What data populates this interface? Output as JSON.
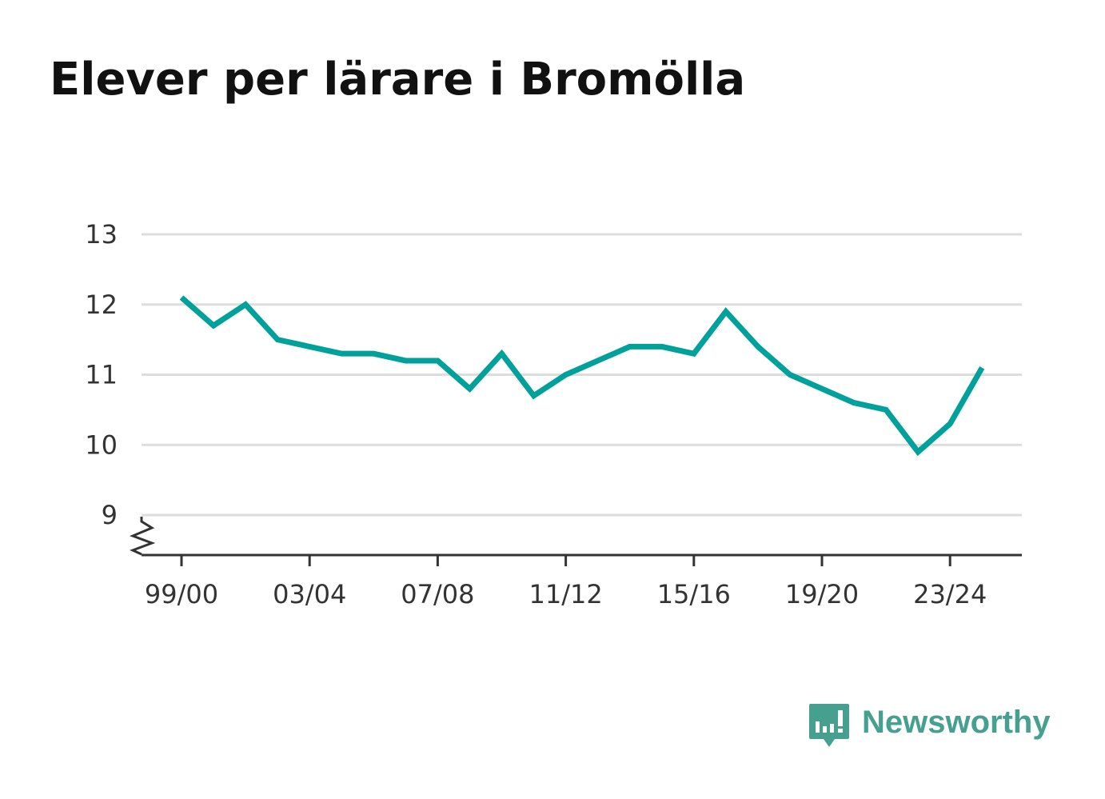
{
  "title": "Elever per lärare i Bromölla",
  "brand": {
    "name": "Newsworthy",
    "icon": "newsworthy-logo-icon",
    "color": "#45a090"
  },
  "chart_data": {
    "type": "line",
    "title": "Elever per lärare i Bromölla",
    "xlabel": "",
    "ylabel": "",
    "categories": [
      "99/00",
      "00/01",
      "01/02",
      "02/03",
      "03/04",
      "04/05",
      "05/06",
      "06/07",
      "07/08",
      "08/09",
      "09/10",
      "10/11",
      "11/12",
      "12/13",
      "13/14",
      "14/15",
      "15/16",
      "16/17",
      "17/18",
      "18/19",
      "19/20",
      "20/21",
      "21/22",
      "22/23",
      "23/24",
      "24/25"
    ],
    "x_tick_labels": [
      "99/00",
      "03/04",
      "07/08",
      "11/12",
      "15/16",
      "19/20",
      "23/24"
    ],
    "series": [
      {
        "values": [
          12.1,
          11.7,
          12.0,
          11.5,
          11.4,
          11.3,
          11.3,
          11.2,
          11.2,
          10.8,
          11.3,
          10.7,
          11.0,
          11.2,
          11.4,
          11.4,
          11.3,
          11.9,
          11.4,
          11.0,
          10.8,
          10.6,
          10.5,
          9.9,
          10.3,
          11.1
        ],
        "color": "#00a19a"
      }
    ],
    "y_ticks": [
      9,
      10,
      11,
      12,
      13
    ],
    "ylim": [
      8.45,
      13
    ],
    "y_axis_break": true,
    "grid": true,
    "legend": "none",
    "colors": {
      "line": "#00a19a",
      "grid": "#dddddd",
      "axis": "#333333",
      "text": "#333333"
    }
  }
}
